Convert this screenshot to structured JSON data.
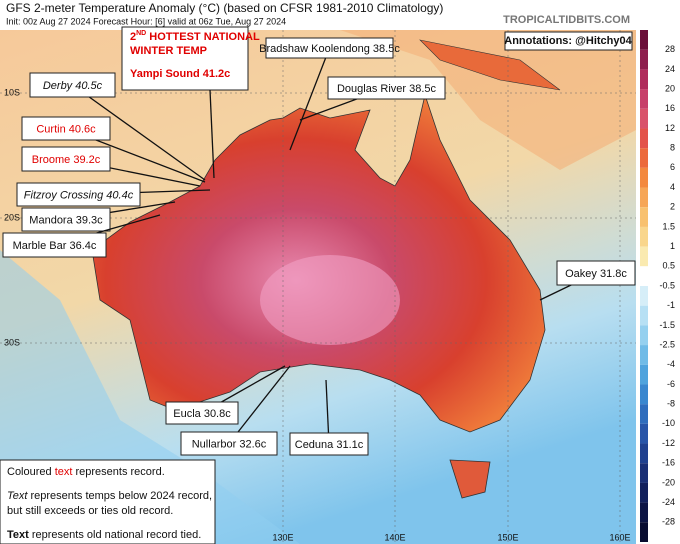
{
  "header": {
    "title": "GFS 2-meter Temperature Anomaly (°C) (based on CFSR 1981-2010 Climatology)",
    "subtitle": "Init: 00z Aug 27 2024   Forecast Hour: [6]   valid at 06z Tue, Aug 27 2024",
    "source": "TROPICALTIDBITS.COM"
  },
  "credit": "Annotations: @Hitchy04",
  "headline": {
    "lead": "2",
    "sup": "ND",
    "rest": " HOTTEST NATIONAL",
    "line2": "WINTER TEMP",
    "station": "Yampi Sound 41.2c"
  },
  "stations": [
    {
      "label": "Bradshaw Koolendong 38.5c",
      "style": "normal"
    },
    {
      "label": "Derby 40.5c",
      "style": "italic"
    },
    {
      "label": "Douglas River 38.5c",
      "style": "normal"
    },
    {
      "label": "Curtin 40.6c",
      "style": "record"
    },
    {
      "label": "Broome 39.2c",
      "style": "record"
    },
    {
      "label": "Fitzroy Crossing 40.4c",
      "style": "italic"
    },
    {
      "label": "Mandora 39.3c",
      "style": "normal"
    },
    {
      "label": "Marble Bar 36.4c",
      "style": "normal"
    },
    {
      "label": "Oakey 31.8c",
      "style": "normal"
    },
    {
      "label": "Eucla 30.8c",
      "style": "normal"
    },
    {
      "label": "Nullarbor 32.6c",
      "style": "normal"
    },
    {
      "label": "Ceduna 31.1c",
      "style": "normal"
    }
  ],
  "legend": {
    "line1": {
      "a": "Coloured ",
      "b": "text",
      "c": " represents record."
    },
    "line2": {
      "a": "Text",
      "b": " represents temps below 2024 record,"
    },
    "line3": "but still exceeds or ties old record.",
    "line4": {
      "a": "Text",
      "b": " represents old national record tied."
    }
  },
  "colorbar": [
    28,
    24,
    20,
    16,
    12,
    8,
    6,
    4,
    2,
    1.5,
    1,
    0.5,
    -0.5,
    -1,
    -1.5,
    -2.5,
    -4,
    -6,
    -8,
    -10,
    -12,
    -16,
    -20,
    -24,
    -28
  ],
  "lat_labels": [
    "10S",
    "20S",
    "30S"
  ],
  "lon_labels": [
    "130E",
    "140E",
    "150E",
    "160E"
  ]
}
